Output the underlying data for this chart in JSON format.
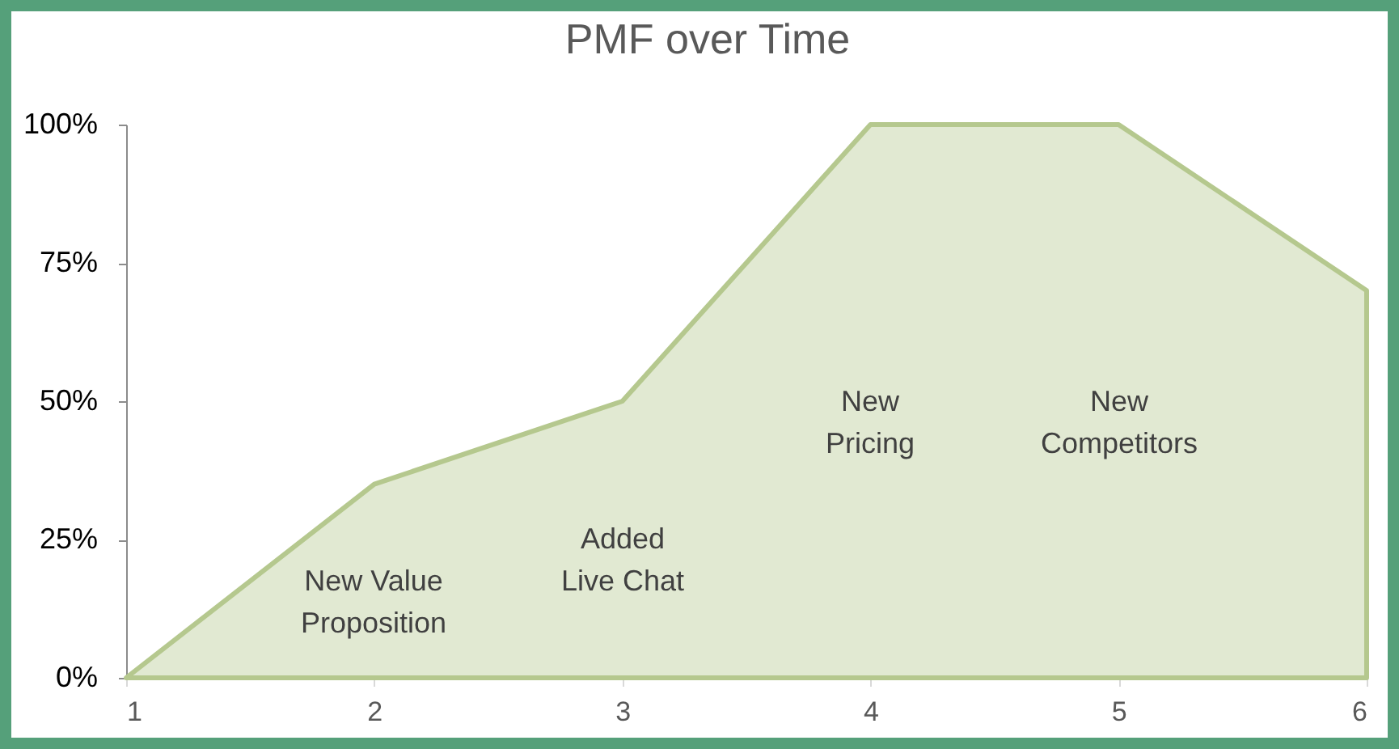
{
  "chart_data": {
    "type": "area",
    "title": "PMF over Time",
    "x": [
      1,
      2,
      3,
      4,
      5,
      6
    ],
    "series": [
      {
        "color": "#b5c88e",
        "values": [
          0,
          35,
          50,
          100,
          100,
          70
        ]
      }
    ],
    "xlim": [
      1,
      6
    ],
    "xticks": [
      1,
      2,
      3,
      4,
      5,
      6
    ],
    "ylim": [
      0,
      100
    ],
    "yticks": [
      {
        "value": 0,
        "label": "0%"
      },
      {
        "value": 25,
        "label": "25%"
      },
      {
        "value": 50,
        "label": "50%"
      },
      {
        "value": 75,
        "label": "75%"
      },
      {
        "value": 100,
        "label": "100%"
      }
    ],
    "annotations": [
      "New Value\nProposition",
      "Added\nLive Chat",
      "New\nPricing",
      "New\nCompetitors"
    ]
  }
}
